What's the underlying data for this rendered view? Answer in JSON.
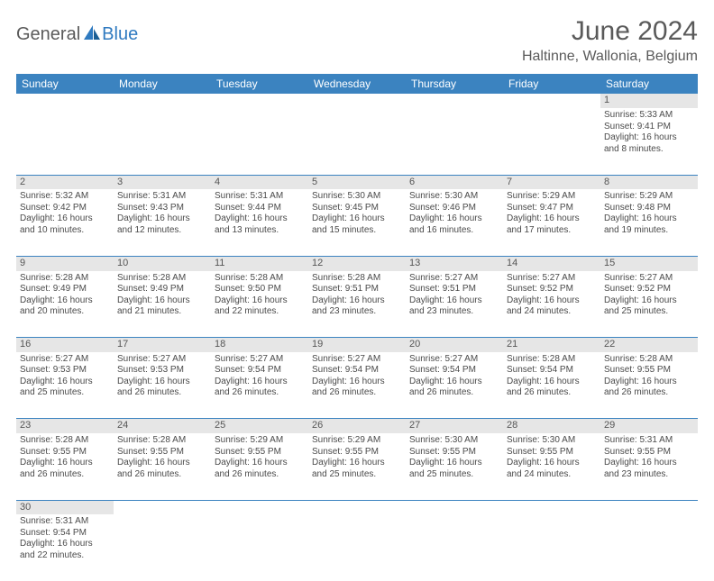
{
  "logo": {
    "general": "General",
    "blue": "Blue",
    "general_color": "#5a5a5a",
    "blue_color": "#2f7ac0"
  },
  "title": "June 2024",
  "location": "Haltinne, Wallonia, Belgium",
  "header_bg": "#3b83c0",
  "header_fg": "#ffffff",
  "daynum_bg": "#e6e6e6",
  "border_color": "#3b83c0",
  "text_color": "#4a4a4a",
  "weekdays": [
    "Sunday",
    "Monday",
    "Tuesday",
    "Wednesday",
    "Thursday",
    "Friday",
    "Saturday"
  ],
  "weeks": [
    {
      "nums": [
        "",
        "",
        "",
        "",
        "",
        "",
        "1"
      ],
      "cells": [
        null,
        null,
        null,
        null,
        null,
        null,
        {
          "sunrise": "Sunrise: 5:33 AM",
          "sunset": "Sunset: 9:41 PM",
          "day1": "Daylight: 16 hours",
          "day2": "and 8 minutes."
        }
      ]
    },
    {
      "nums": [
        "2",
        "3",
        "4",
        "5",
        "6",
        "7",
        "8"
      ],
      "cells": [
        {
          "sunrise": "Sunrise: 5:32 AM",
          "sunset": "Sunset: 9:42 PM",
          "day1": "Daylight: 16 hours",
          "day2": "and 10 minutes."
        },
        {
          "sunrise": "Sunrise: 5:31 AM",
          "sunset": "Sunset: 9:43 PM",
          "day1": "Daylight: 16 hours",
          "day2": "and 12 minutes."
        },
        {
          "sunrise": "Sunrise: 5:31 AM",
          "sunset": "Sunset: 9:44 PM",
          "day1": "Daylight: 16 hours",
          "day2": "and 13 minutes."
        },
        {
          "sunrise": "Sunrise: 5:30 AM",
          "sunset": "Sunset: 9:45 PM",
          "day1": "Daylight: 16 hours",
          "day2": "and 15 minutes."
        },
        {
          "sunrise": "Sunrise: 5:30 AM",
          "sunset": "Sunset: 9:46 PM",
          "day1": "Daylight: 16 hours",
          "day2": "and 16 minutes."
        },
        {
          "sunrise": "Sunrise: 5:29 AM",
          "sunset": "Sunset: 9:47 PM",
          "day1": "Daylight: 16 hours",
          "day2": "and 17 minutes."
        },
        {
          "sunrise": "Sunrise: 5:29 AM",
          "sunset": "Sunset: 9:48 PM",
          "day1": "Daylight: 16 hours",
          "day2": "and 19 minutes."
        }
      ]
    },
    {
      "nums": [
        "9",
        "10",
        "11",
        "12",
        "13",
        "14",
        "15"
      ],
      "cells": [
        {
          "sunrise": "Sunrise: 5:28 AM",
          "sunset": "Sunset: 9:49 PM",
          "day1": "Daylight: 16 hours",
          "day2": "and 20 minutes."
        },
        {
          "sunrise": "Sunrise: 5:28 AM",
          "sunset": "Sunset: 9:49 PM",
          "day1": "Daylight: 16 hours",
          "day2": "and 21 minutes."
        },
        {
          "sunrise": "Sunrise: 5:28 AM",
          "sunset": "Sunset: 9:50 PM",
          "day1": "Daylight: 16 hours",
          "day2": "and 22 minutes."
        },
        {
          "sunrise": "Sunrise: 5:28 AM",
          "sunset": "Sunset: 9:51 PM",
          "day1": "Daylight: 16 hours",
          "day2": "and 23 minutes."
        },
        {
          "sunrise": "Sunrise: 5:27 AM",
          "sunset": "Sunset: 9:51 PM",
          "day1": "Daylight: 16 hours",
          "day2": "and 23 minutes."
        },
        {
          "sunrise": "Sunrise: 5:27 AM",
          "sunset": "Sunset: 9:52 PM",
          "day1": "Daylight: 16 hours",
          "day2": "and 24 minutes."
        },
        {
          "sunrise": "Sunrise: 5:27 AM",
          "sunset": "Sunset: 9:52 PM",
          "day1": "Daylight: 16 hours",
          "day2": "and 25 minutes."
        }
      ]
    },
    {
      "nums": [
        "16",
        "17",
        "18",
        "19",
        "20",
        "21",
        "22"
      ],
      "cells": [
        {
          "sunrise": "Sunrise: 5:27 AM",
          "sunset": "Sunset: 9:53 PM",
          "day1": "Daylight: 16 hours",
          "day2": "and 25 minutes."
        },
        {
          "sunrise": "Sunrise: 5:27 AM",
          "sunset": "Sunset: 9:53 PM",
          "day1": "Daylight: 16 hours",
          "day2": "and 26 minutes."
        },
        {
          "sunrise": "Sunrise: 5:27 AM",
          "sunset": "Sunset: 9:54 PM",
          "day1": "Daylight: 16 hours",
          "day2": "and 26 minutes."
        },
        {
          "sunrise": "Sunrise: 5:27 AM",
          "sunset": "Sunset: 9:54 PM",
          "day1": "Daylight: 16 hours",
          "day2": "and 26 minutes."
        },
        {
          "sunrise": "Sunrise: 5:27 AM",
          "sunset": "Sunset: 9:54 PM",
          "day1": "Daylight: 16 hours",
          "day2": "and 26 minutes."
        },
        {
          "sunrise": "Sunrise: 5:28 AM",
          "sunset": "Sunset: 9:54 PM",
          "day1": "Daylight: 16 hours",
          "day2": "and 26 minutes."
        },
        {
          "sunrise": "Sunrise: 5:28 AM",
          "sunset": "Sunset: 9:55 PM",
          "day1": "Daylight: 16 hours",
          "day2": "and 26 minutes."
        }
      ]
    },
    {
      "nums": [
        "23",
        "24",
        "25",
        "26",
        "27",
        "28",
        "29"
      ],
      "cells": [
        {
          "sunrise": "Sunrise: 5:28 AM",
          "sunset": "Sunset: 9:55 PM",
          "day1": "Daylight: 16 hours",
          "day2": "and 26 minutes."
        },
        {
          "sunrise": "Sunrise: 5:28 AM",
          "sunset": "Sunset: 9:55 PM",
          "day1": "Daylight: 16 hours",
          "day2": "and 26 minutes."
        },
        {
          "sunrise": "Sunrise: 5:29 AM",
          "sunset": "Sunset: 9:55 PM",
          "day1": "Daylight: 16 hours",
          "day2": "and 26 minutes."
        },
        {
          "sunrise": "Sunrise: 5:29 AM",
          "sunset": "Sunset: 9:55 PM",
          "day1": "Daylight: 16 hours",
          "day2": "and 25 minutes."
        },
        {
          "sunrise": "Sunrise: 5:30 AM",
          "sunset": "Sunset: 9:55 PM",
          "day1": "Daylight: 16 hours",
          "day2": "and 25 minutes."
        },
        {
          "sunrise": "Sunrise: 5:30 AM",
          "sunset": "Sunset: 9:55 PM",
          "day1": "Daylight: 16 hours",
          "day2": "and 24 minutes."
        },
        {
          "sunrise": "Sunrise: 5:31 AM",
          "sunset": "Sunset: 9:55 PM",
          "day1": "Daylight: 16 hours",
          "day2": "and 23 minutes."
        }
      ]
    },
    {
      "nums": [
        "30",
        "",
        "",
        "",
        "",
        "",
        ""
      ],
      "cells": [
        {
          "sunrise": "Sunrise: 5:31 AM",
          "sunset": "Sunset: 9:54 PM",
          "day1": "Daylight: 16 hours",
          "day2": "and 22 minutes."
        },
        null,
        null,
        null,
        null,
        null,
        null
      ],
      "last": true
    }
  ]
}
